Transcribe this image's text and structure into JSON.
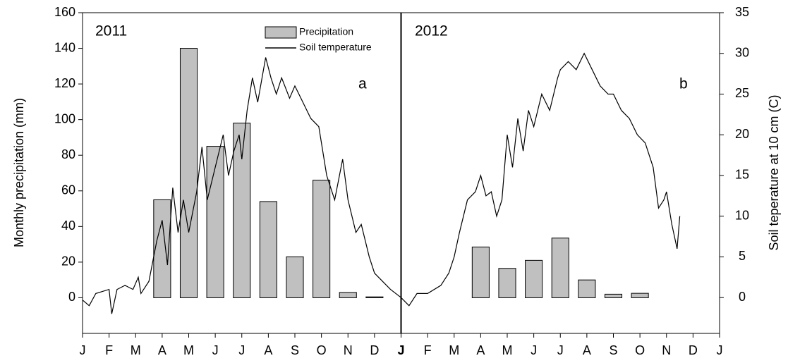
{
  "chart_data": {
    "type": "bar-line",
    "y_label": "Monthly precipitation (mm)",
    "y2_label": "Soil teperature at 10 cm (C)",
    "annotations": [
      "2011",
      "a",
      "2012",
      "b"
    ],
    "xlim": [
      0,
      24
    ],
    "xticks": [
      {
        "value": 0,
        "label": "J"
      },
      {
        "value": 1,
        "label": "F"
      },
      {
        "value": 2,
        "label": "M"
      },
      {
        "value": 3,
        "label": "A"
      },
      {
        "value": 4,
        "label": "M"
      },
      {
        "value": 5,
        "label": "J"
      },
      {
        "value": 6,
        "label": "J"
      },
      {
        "value": 7,
        "label": "A"
      },
      {
        "value": 8,
        "label": "S"
      },
      {
        "value": 9,
        "label": "O"
      },
      {
        "value": 10,
        "label": "N"
      },
      {
        "value": 11,
        "label": "D"
      },
      {
        "value": 12,
        "label": "J"
      },
      {
        "value": 13,
        "label": "F"
      },
      {
        "value": 14,
        "label": "M"
      },
      {
        "value": 15,
        "label": "A"
      },
      {
        "value": 16,
        "label": "M"
      },
      {
        "value": 17,
        "label": "J"
      },
      {
        "value": 18,
        "label": "J"
      },
      {
        "value": 19,
        "label": "A"
      },
      {
        "value": 20,
        "label": "S"
      },
      {
        "value": 21,
        "label": "O"
      },
      {
        "value": 22,
        "label": "N"
      },
      {
        "value": 23,
        "label": "D"
      },
      {
        "value": 24,
        "label": "J"
      }
    ],
    "ylim": [
      -20,
      160
    ],
    "yticks": [
      0,
      20,
      40,
      60,
      80,
      100,
      120,
      140,
      160
    ],
    "y2lim": [
      -4.4,
      35
    ],
    "y2ticks": [
      0,
      5,
      10,
      15,
      20,
      25,
      30,
      35
    ],
    "series": [
      {
        "name": "Precipitation",
        "kind": "bar",
        "color": "#c0c0c0",
        "x": [
          3,
          4,
          5,
          6,
          7,
          8,
          9,
          10,
          11,
          15,
          16,
          17,
          18,
          19,
          20,
          21
        ],
        "values": [
          55,
          140,
          85,
          98,
          54,
          23,
          66,
          3,
          0.5,
          28.5,
          16.5,
          21,
          33.5,
          10,
          2,
          2.5
        ]
      },
      {
        "name": "Soil temperature",
        "kind": "line",
        "axis": "y2",
        "color": "#000000",
        "x": [
          0,
          0.25,
          0.5,
          1.0,
          1.1,
          1.3,
          1.6,
          1.9,
          2.1,
          2.2,
          2.5,
          2.8,
          3.0,
          3.2,
          3.4,
          3.6,
          3.8,
          4.0,
          4.3,
          4.5,
          4.7,
          5.0,
          5.3,
          5.5,
          5.7,
          5.9,
          6.0,
          6.2,
          6.4,
          6.6,
          6.9,
          7.1,
          7.3,
          7.5,
          7.8,
          8.0,
          8.3,
          8.6,
          8.9,
          9.2,
          9.5,
          9.8,
          10.0,
          10.3,
          10.5,
          10.8,
          11.0,
          11.3,
          11.6,
          12.0,
          12.3,
          12.6,
          13.0,
          13.5,
          13.8,
          14.0,
          14.2,
          14.5,
          14.8,
          15.0,
          15.2,
          15.4,
          15.6,
          15.8,
          16.0,
          16.2,
          16.4,
          16.6,
          16.8,
          17.0,
          17.3,
          17.6,
          17.9,
          18.0,
          18.3,
          18.6,
          18.9,
          19.2,
          19.5,
          19.8,
          20.0,
          20.3,
          20.6,
          20.9,
          21.2,
          21.5,
          21.7,
          21.9,
          22.0,
          22.2,
          22.4,
          22.5
        ],
        "values": [
          -0.3,
          -1,
          0.5,
          1,
          -2,
          1,
          1.5,
          1,
          2.5,
          0.5,
          2,
          7,
          9.5,
          4,
          13.5,
          8,
          12,
          8,
          13,
          18.5,
          12,
          16,
          20,
          15,
          18,
          20,
          17,
          23,
          27,
          24,
          29.5,
          27,
          25,
          27,
          24.5,
          26,
          24,
          22,
          21,
          15,
          12,
          17,
          12,
          8,
          9,
          5,
          3,
          2,
          1,
          0,
          -1,
          0.5,
          0.5,
          1.5,
          3,
          5,
          8,
          12,
          13,
          15,
          12.5,
          13,
          10,
          12,
          20,
          16,
          22,
          18,
          23,
          21,
          25,
          23,
          27,
          28,
          29,
          28,
          30,
          28,
          26,
          25,
          25,
          23,
          22,
          20,
          19,
          16,
          11,
          12,
          13,
          9,
          6,
          10
        ]
      }
    ]
  }
}
